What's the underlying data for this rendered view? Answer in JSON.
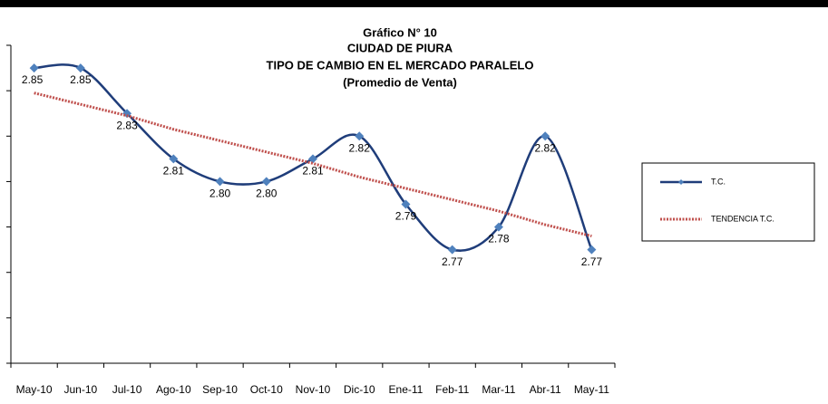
{
  "chart_data": {
    "type": "line",
    "title": "Gráfico N° 10",
    "subtitle": [
      "CIUDAD DE PIURA",
      "TIPO DE CAMBIO EN EL MERCADO PARALELO",
      "(Promedio de Venta)"
    ],
    "categories": [
      "May-10",
      "Jun-10",
      "Jul-10",
      "Ago-10",
      "Sep-10",
      "Oct-10",
      "Nov-10",
      "Dic-10",
      "Ene-11",
      "Feb-11",
      "Mar-11",
      "Abr-11",
      "May-11"
    ],
    "series": [
      {
        "name": "T.C.",
        "color": "#1f3d7a",
        "values": [
          2.85,
          2.85,
          2.83,
          2.81,
          2.8,
          2.8,
          2.81,
          2.82,
          2.79,
          2.77,
          2.78,
          2.82,
          2.77
        ],
        "value_labels": [
          "2.85",
          "2.85",
          "2.83",
          "2.81",
          "2.80",
          "2.80",
          "2.81",
          "2.82",
          "2.79",
          "2.77",
          "2.78",
          "2.82",
          "2.77"
        ]
      },
      {
        "name": "TENDENCIA T.C.",
        "color": "#c0504d",
        "dashed": true,
        "values": [
          2.839,
          2.834,
          2.829,
          2.823,
          2.818,
          2.813,
          2.808,
          2.802,
          2.797,
          2.792,
          2.787,
          2.781,
          2.776
        ]
      }
    ],
    "ylim": [
      2.72,
      2.86
    ],
    "yticks": [
      2.72,
      2.74,
      2.76,
      2.78,
      2.8,
      2.82,
      2.84,
      2.86
    ],
    "marker_color": "#4f81bd",
    "smooth": true
  }
}
